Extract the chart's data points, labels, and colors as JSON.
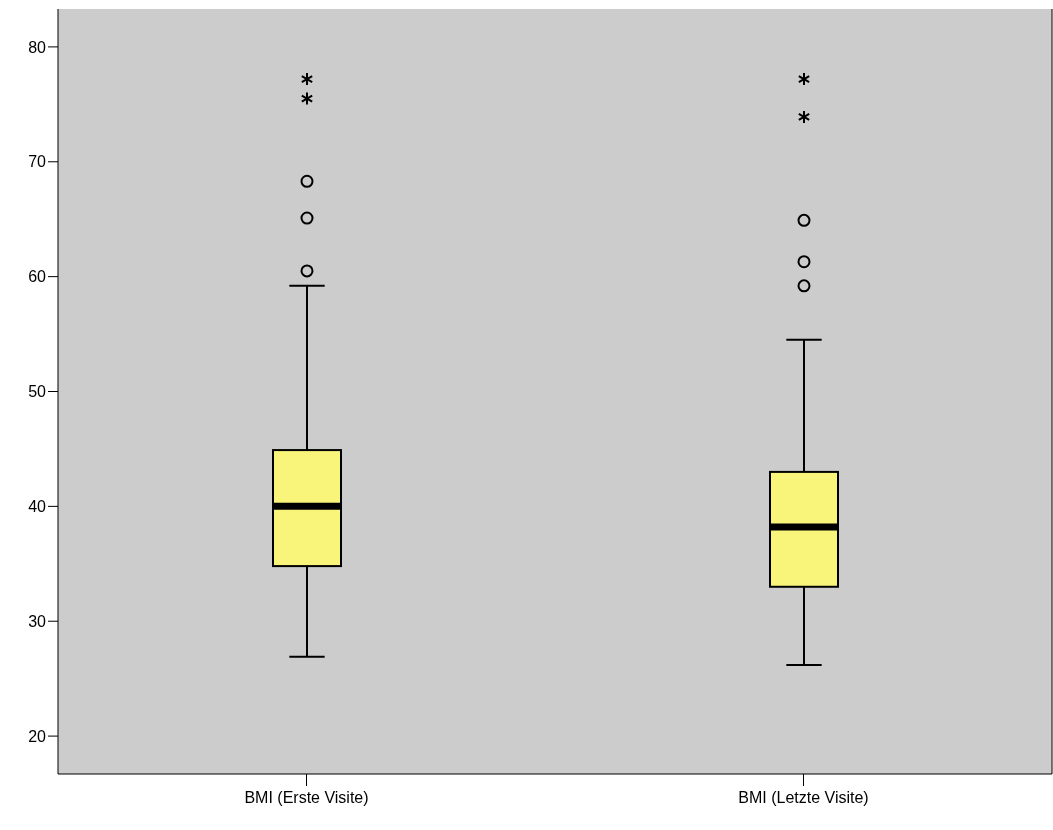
{
  "chart_data": {
    "type": "box",
    "categories": [
      "BMI (Erste Visite)",
      "BMI (Letzte Visite)"
    ],
    "color": "#f9f57a",
    "boxes": [
      {
        "low": 26.9,
        "q1": 34.8,
        "median": 40.0,
        "q3": 44.9,
        "high": 59.2,
        "outliers": [
          60.5,
          65.1,
          68.3,
          75.5,
          77.2
        ]
      },
      {
        "low": 26.2,
        "q1": 33.0,
        "median": 38.2,
        "q3": 43.0,
        "high": 54.5,
        "outliers": [
          59.2,
          61.3,
          64.9,
          73.9,
          77.2
        ]
      }
    ],
    "ylim": [
      16.7,
      83.3
    ],
    "yticks": [
      20,
      30,
      40,
      50,
      60,
      70,
      80
    ],
    "grid": false,
    "legend": false
  }
}
